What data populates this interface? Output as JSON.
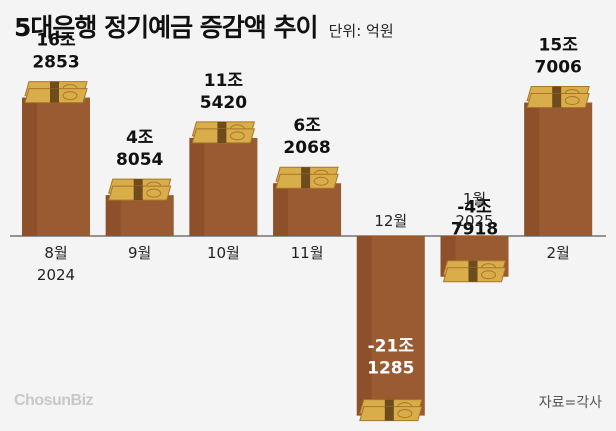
{
  "title": "5대은행 정기예금 증감액 추이",
  "unit_label": "단위: 억원",
  "brand": "ChosunBiz",
  "source": "자료=각사",
  "colors": {
    "bar": "#9a5a32",
    "bar_dark": "#7e4524",
    "money": "#d9ad4a",
    "money_dark": "#a8772a",
    "money_band": "#5a3b16",
    "axis": "#333333",
    "text": "#111111"
  },
  "chart_data": {
    "type": "bar",
    "categories": [
      [
        "8월",
        "2024"
      ],
      [
        "9월"
      ],
      [
        "10월"
      ],
      [
        "11월"
      ],
      [
        "12월"
      ],
      [
        "1월",
        "2025"
      ],
      [
        "2월"
      ]
    ],
    "values": [
      162853,
      48054,
      115420,
      62068,
      -211285,
      -47918,
      157006
    ],
    "value_labels": [
      [
        "16조",
        "2853"
      ],
      [
        "4조",
        "8054"
      ],
      [
        "11조",
        "5420"
      ],
      [
        "6조",
        "2068"
      ],
      [
        "-21조",
        "1285"
      ],
      [
        "-4조",
        "7918"
      ],
      [
        "15조",
        "7006"
      ]
    ],
    "title": "5대은행 정기예금 증감액 추이",
    "ylabel": "",
    "ylim": [
      -215000,
      165000
    ]
  }
}
